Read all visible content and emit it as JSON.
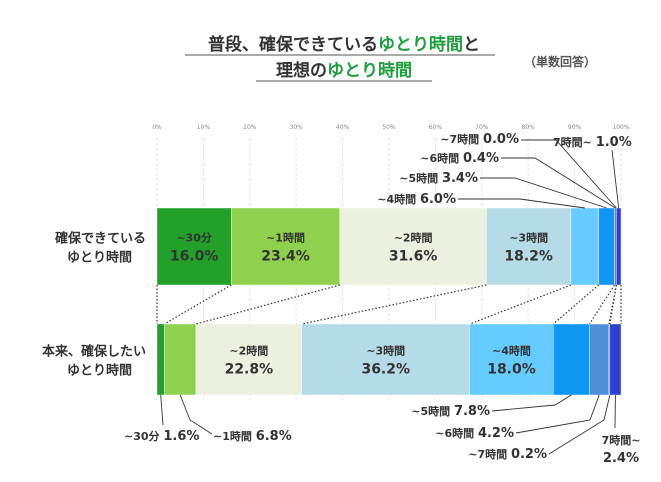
{
  "chart_data": {
    "type": "bar",
    "orientation": "horizontal-stacked-100",
    "title": {
      "line1_part1": "普段、確保できている",
      "line1_part2": "ゆとり時間",
      "line1_part3": "と",
      "line2_part1": "理想の",
      "line2_part2": "ゆとり時間"
    },
    "subtitle": "（単数回答）",
    "xaxis": {
      "ticks": [
        "0%",
        "10%",
        "20%",
        "30%",
        "40%",
        "50%",
        "60%",
        "70%",
        "80%",
        "90%",
        "100%"
      ],
      "range": [
        0,
        100
      ]
    },
    "categories": [
      {
        "line1": "確保できている",
        "line2": "ゆとり時間"
      },
      {
        "line1": "本来、確保したい",
        "line2": "ゆとり時間"
      }
    ],
    "series": [
      {
        "name": "~30分",
        "color": "#22a02a",
        "values": [
          16.0,
          1.6
        ]
      },
      {
        "name": "~1時間",
        "color": "#8fd14f",
        "values": [
          23.4,
          6.8
        ]
      },
      {
        "name": "~2時間",
        "color": "#ecf0de",
        "values": [
          31.6,
          22.8
        ]
      },
      {
        "name": "~3時間",
        "color": "#b5dbe6",
        "values": [
          18.2,
          36.2
        ]
      },
      {
        "name": "~4時間",
        "color": "#66ccff",
        "values": [
          6.0,
          18.0
        ]
      },
      {
        "name": "~5時間",
        "color": "#0f96f0",
        "values": [
          3.4,
          7.8
        ]
      },
      {
        "name": "~6時間",
        "color": "#4f8fd8",
        "values": [
          0.4,
          4.2
        ]
      },
      {
        "name": "~7時間",
        "color": "#3d6ecc",
        "values": [
          0.0,
          0.2
        ]
      },
      {
        "name": "7時間~",
        "color": "#2c3fcf",
        "values": [
          1.0,
          2.4
        ]
      }
    ],
    "labels": {
      "bar1_inside": [
        {
          "name": "~30分",
          "value": "16.0%"
        },
        {
          "name": "~1時間",
          "value": "23.4%"
        },
        {
          "name": "~2時間",
          "value": "31.6%"
        },
        {
          "name": "~3時間",
          "value": "18.2%"
        }
      ],
      "bar1_outside": [
        {
          "name": "~7時間",
          "value": "0.0%"
        },
        {
          "name": "7時間~",
          "value": "1.0%"
        },
        {
          "name": "~6時間",
          "value": "0.4%"
        },
        {
          "name": "~5時間",
          "value": "3.4%"
        },
        {
          "name": "~4時間",
          "value": "6.0%"
        }
      ],
      "bar2_inside": [
        {
          "name": "~2時間",
          "value": "22.8%"
        },
        {
          "name": "~3時間",
          "value": "36.2%"
        },
        {
          "name": "~4時間",
          "value": "18.0%"
        }
      ],
      "bar2_outside": [
        {
          "name": "~30分",
          "value": "1.6%"
        },
        {
          "name": "~1時間",
          "value": "6.8%"
        },
        {
          "name": "~5時間",
          "value": "7.8%"
        },
        {
          "name": "~6時間",
          "value": "4.2%"
        },
        {
          "name": "~7時間",
          "value": "0.2%"
        },
        {
          "name": "7時間~",
          "value": "2.4%"
        }
      ]
    }
  }
}
